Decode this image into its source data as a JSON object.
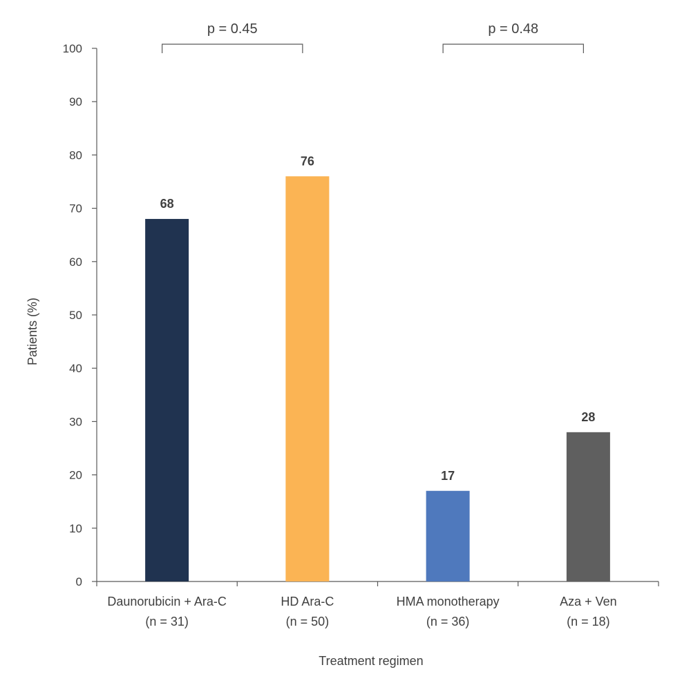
{
  "chart_data": {
    "type": "bar",
    "title": "",
    "xlabel": "Treatment regimen",
    "ylabel": "Patients (%)",
    "ylim": [
      0,
      100
    ],
    "yticks": [
      0,
      10,
      20,
      30,
      40,
      50,
      60,
      70,
      80,
      90,
      100
    ],
    "grid": false,
    "categories": [
      {
        "name": "Daunorubicin + Ara-C",
        "n": "(n = 31)"
      },
      {
        "name": "HD Ara-C",
        "n": "(n = 50)"
      },
      {
        "name": "HMA monotherapy",
        "n": "(n = 36)"
      },
      {
        "name": "Aza + Ven",
        "n": "(n = 18)"
      }
    ],
    "values": [
      68,
      76,
      17,
      28
    ],
    "data_labels": [
      "68",
      "76",
      "17",
      "28"
    ],
    "colors": [
      "#203350",
      "#fbb454",
      "#4f79bd",
      "#5f5f5f"
    ],
    "comparisons": [
      {
        "between": [
          0,
          1
        ],
        "label": "p = 0.45"
      },
      {
        "between": [
          2,
          3
        ],
        "label": "p = 0.48"
      }
    ]
  }
}
